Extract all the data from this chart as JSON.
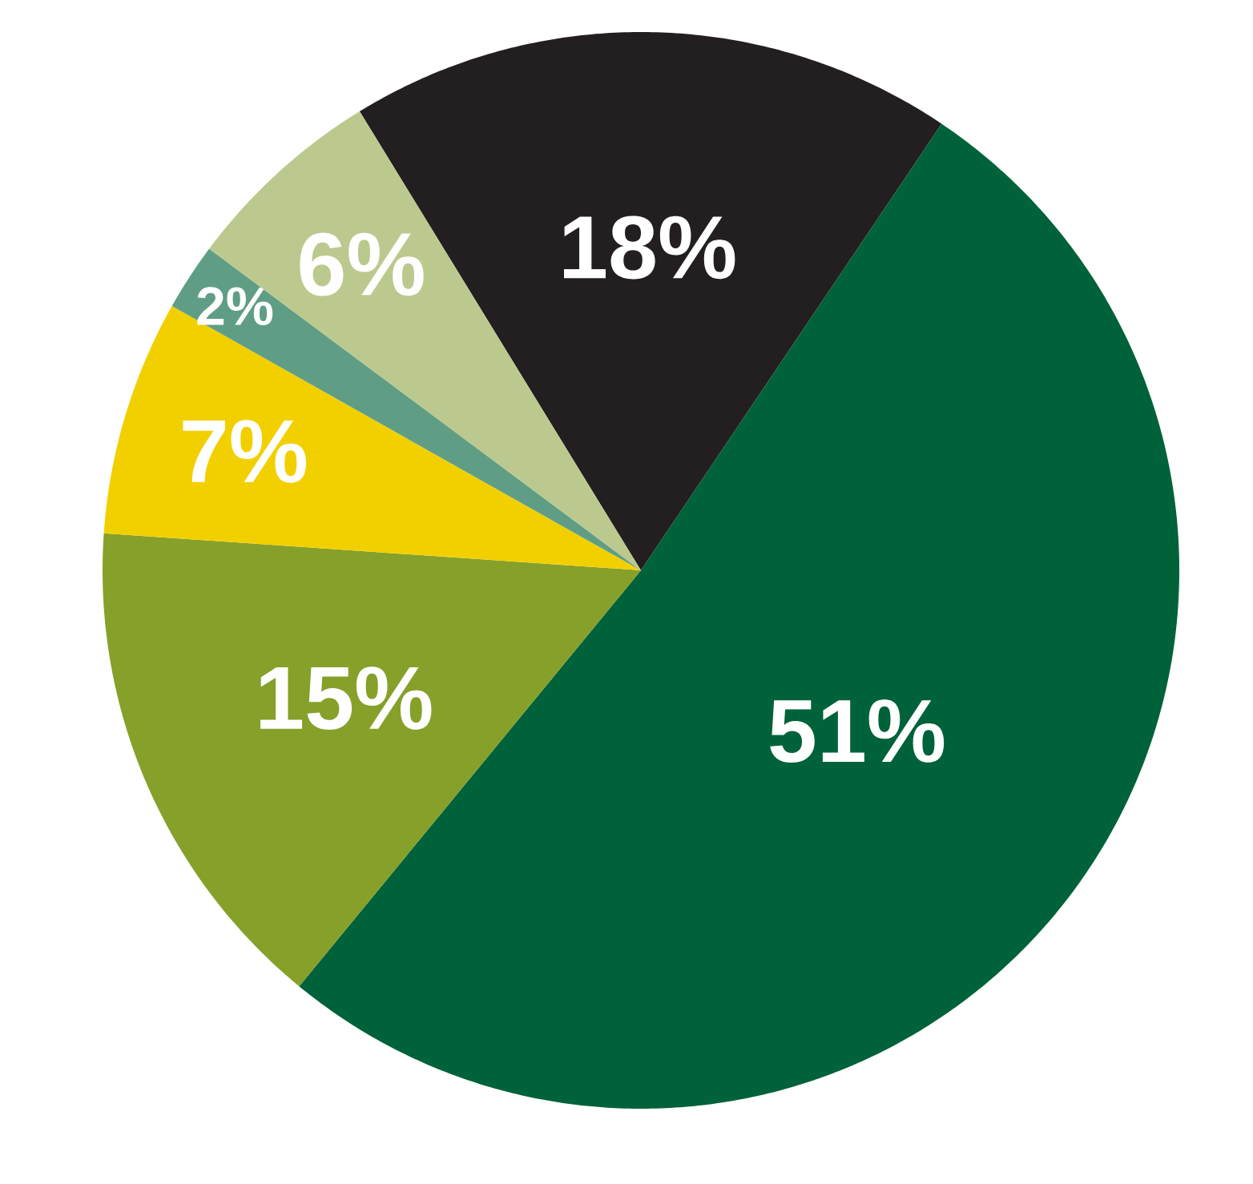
{
  "chart_data": {
    "type": "pie",
    "categories": [
      null,
      null,
      null,
      null,
      null,
      null
    ],
    "values": [
      18,
      51,
      15,
      7,
      2,
      6
    ],
    "colors": [
      "#231f20",
      "#00623a",
      "#86a02a",
      "#f2d000",
      "#5f9e85",
      "#bcc98e"
    ],
    "value_labels": [
      "18%",
      "51%",
      "15%",
      "7%",
      "2%",
      "6%"
    ]
  }
}
